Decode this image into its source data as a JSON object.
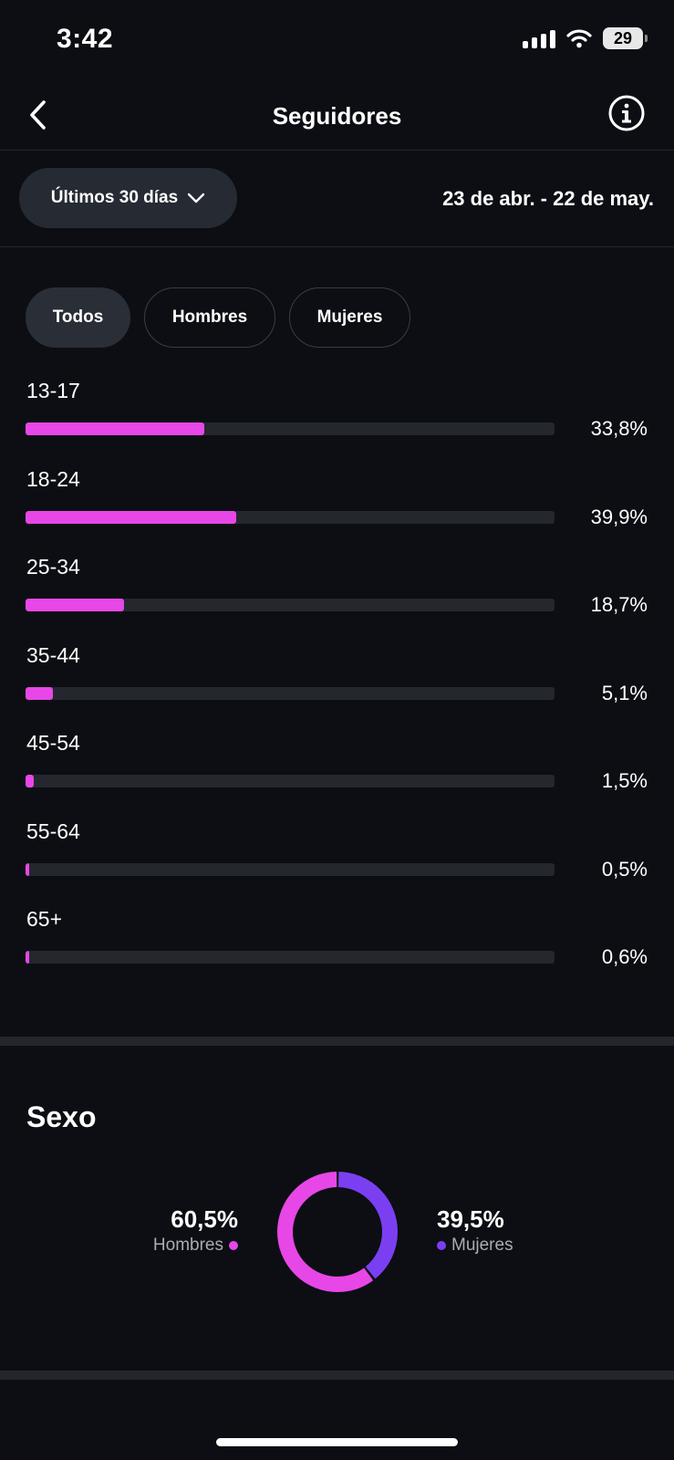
{
  "status_bar": {
    "time": "3:42",
    "battery": "29"
  },
  "header": {
    "title": "Seguidores",
    "back_icon": "chevron-left-icon",
    "info_icon": "info-icon"
  },
  "filters": {
    "range_label": "Últimos 30 días",
    "date_range": "23 de abr. - 22 de may."
  },
  "tabs": [
    {
      "label": "Todos",
      "active": true
    },
    {
      "label": "Hombres",
      "active": false
    },
    {
      "label": "Mujeres",
      "active": false
    }
  ],
  "age": {
    "items": [
      {
        "label": "13-17",
        "value_text": "33,8%"
      },
      {
        "label": "18-24",
        "value_text": "39,9%"
      },
      {
        "label": "25-34",
        "value_text": "18,7%"
      },
      {
        "label": "35-44",
        "value_text": "5,1%"
      },
      {
        "label": "45-54",
        "value_text": "1,5%"
      },
      {
        "label": "55-64",
        "value_text": "0,5%"
      },
      {
        "label": "65+",
        "value_text": "0,6%"
      }
    ]
  },
  "sex": {
    "title": "Sexo",
    "men": {
      "pct": "60,5%",
      "label": "Hombres",
      "color": "#e747e6"
    },
    "women": {
      "pct": "39,5%",
      "label": "Mujeres",
      "color": "#7b3ff2"
    }
  },
  "chart_data": [
    {
      "type": "bar",
      "categories": [
        "13-17",
        "18-24",
        "25-34",
        "35-44",
        "45-54",
        "55-64",
        "65+"
      ],
      "values": [
        33.8,
        39.9,
        18.7,
        5.1,
        1.5,
        0.5,
        0.6
      ],
      "ylim": [
        0,
        100
      ],
      "color": "#e747e6"
    },
    {
      "type": "pie",
      "categories": [
        "Hombres",
        "Mujeres"
      ],
      "values": [
        60.5,
        39.5
      ],
      "colors": [
        "#e747e6",
        "#7b3ff2"
      ]
    }
  ]
}
